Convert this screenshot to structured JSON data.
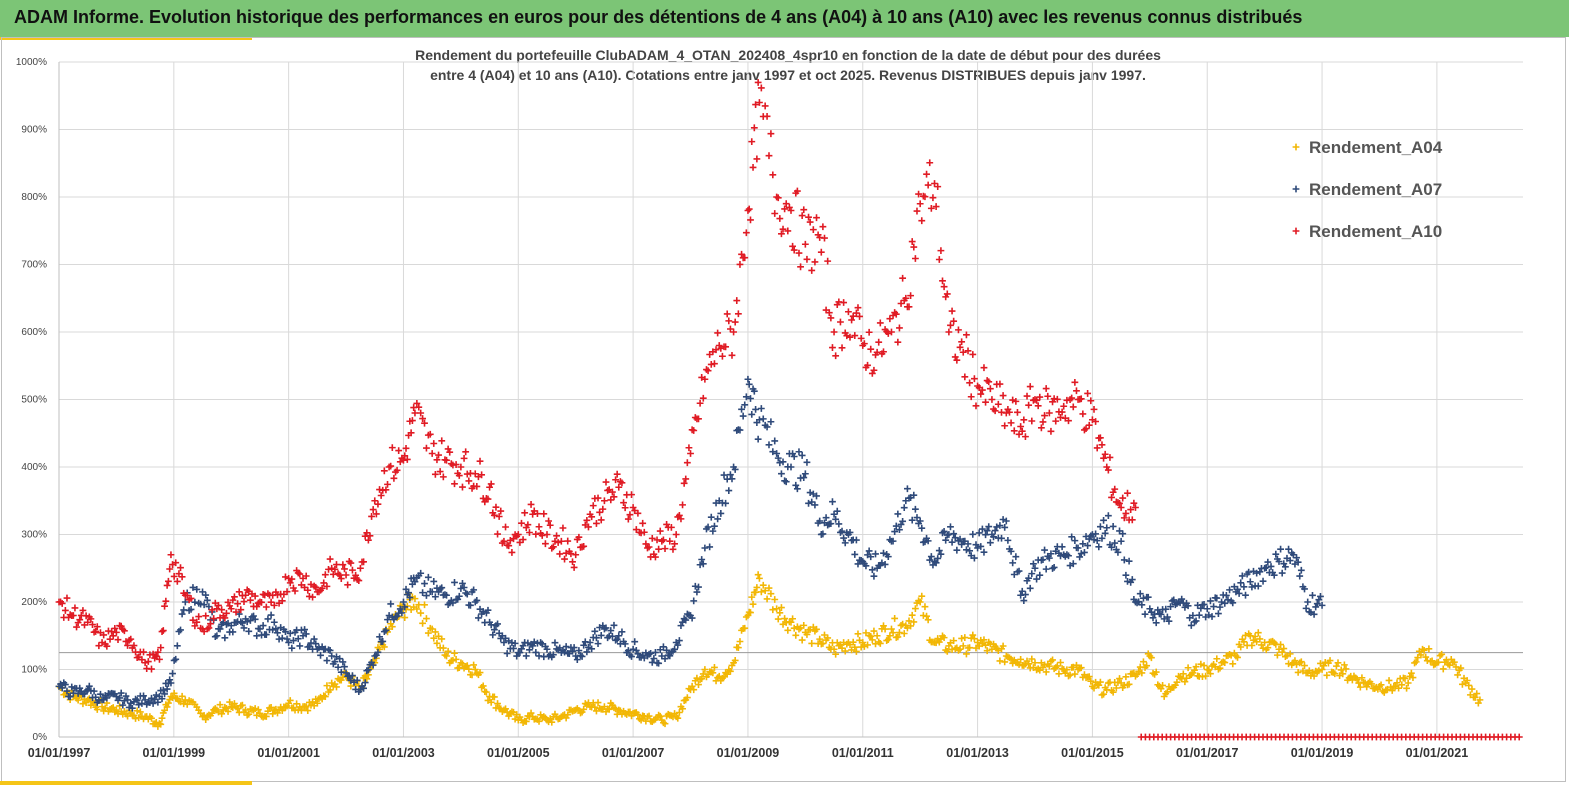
{
  "banner": {
    "title": "ADAM Informe. Evolution historique des performances en euros pour des détentions de 4 ans (A04) à 10 ans (A10) avec les revenus connus distribués"
  },
  "colors": {
    "banner": "#7cc576",
    "accent": "#f5c518",
    "a04": "#f2b705",
    "a07": "#2f4a7a",
    "a10": "#e01b24",
    "grid": "#d9d9d9",
    "refline": "#9a9a9a"
  },
  "chart_data": {
    "type": "scatter",
    "title_lines": [
      "Rendement du portefeuille ClubADAM_4_OTAN_202408_4spr10  en fonction de la date de début pour des durées",
      "entre 4 (A04) et 10 ans (A10). Cotations entre janv 1997 et oct 2025. Revenus DISTRIBUES depuis janv 1997."
    ],
    "xlabel": "",
    "ylabel": "",
    "xlim": [
      1997.0,
      2022.5
    ],
    "ylim": [
      0,
      1000
    ],
    "yticks": [
      0,
      100,
      200,
      300,
      400,
      500,
      600,
      700,
      800,
      900,
      1000
    ],
    "ytick_labels": [
      "0%",
      "100%",
      "200%",
      "300%",
      "400%",
      "500%",
      "600%",
      "700%",
      "800%",
      "900%",
      "1000%"
    ],
    "xticks": [
      1997,
      1999,
      2001,
      2003,
      2005,
      2007,
      2009,
      2011,
      2013,
      2015,
      2017,
      2019,
      2021
    ],
    "xtick_labels": [
      "01/01/1997",
      "01/01/1999",
      "01/01/2001",
      "01/01/2003",
      "01/01/2005",
      "01/01/2007",
      "01/01/2009",
      "01/01/2011",
      "01/01/2013",
      "01/01/2015",
      "01/01/2017",
      "01/01/2019",
      "01/01/2021"
    ],
    "reference_line": 125,
    "grid": true,
    "legend_position": "top-right",
    "marker": "+",
    "series": [
      {
        "name": "Rendement_A04",
        "color": "#f2b705",
        "x": [
          1997.0,
          1997.25,
          1997.5,
          1997.75,
          1998.0,
          1998.25,
          1998.5,
          1998.75,
          1998.95,
          1999.2,
          1999.5,
          1999.75,
          2000.0,
          2000.25,
          2000.5,
          2000.75,
          2001.0,
          2001.25,
          2001.5,
          2001.75,
          2002.0,
          2002.25,
          2002.5,
          2002.75,
          2003.0,
          2003.2,
          2003.5,
          2003.75,
          2004.0,
          2004.25,
          2004.5,
          2004.75,
          2005.0,
          2005.25,
          2005.5,
          2005.75,
          2006.0,
          2006.25,
          2006.5,
          2006.75,
          2007.0,
          2007.25,
          2007.5,
          2007.75,
          2008.0,
          2008.25,
          2008.5,
          2008.75,
          2009.0,
          2009.2,
          2009.5,
          2009.75,
          2010.0,
          2010.25,
          2010.5,
          2010.75,
          2011.0,
          2011.25,
          2011.5,
          2011.75,
          2012.0,
          2012.25,
          2012.5,
          2012.75,
          2013.0,
          2013.25,
          2013.5,
          2013.75,
          2014.0,
          2014.25,
          2014.5,
          2014.75,
          2015.0,
          2015.25,
          2015.5,
          2015.75,
          2016.0,
          2016.25,
          2016.5,
          2016.75,
          2017.0,
          2017.25,
          2017.5,
          2017.75,
          2018.0,
          2018.25,
          2018.5,
          2018.75,
          2019.0,
          2019.25,
          2019.5,
          2019.75,
          2020.0,
          2020.25,
          2020.5,
          2020.75,
          2021.0,
          2021.25,
          2021.5,
          2021.75
        ],
        "values": [
          75,
          60,
          55,
          45,
          40,
          35,
          30,
          20,
          60,
          55,
          30,
          40,
          45,
          40,
          35,
          40,
          50,
          45,
          50,
          80,
          90,
          70,
          110,
          160,
          190,
          205,
          160,
          120,
          110,
          100,
          60,
          40,
          25,
          30,
          25,
          30,
          40,
          45,
          45,
          40,
          35,
          30,
          25,
          30,
          70,
          100,
          90,
          110,
          180,
          235,
          190,
          170,
          155,
          145,
          130,
          140,
          140,
          150,
          160,
          165,
          200,
          140,
          135,
          135,
          140,
          130,
          120,
          115,
          110,
          105,
          100,
          100,
          75,
          70,
          80,
          90,
          120,
          60,
          90,
          95,
          100,
          110,
          120,
          150,
          140,
          130,
          110,
          95,
          100,
          105,
          90,
          80,
          75,
          75,
          80,
          130,
          110,
          115,
          80,
          55
        ]
      },
      {
        "name": "Rendement_A07",
        "color": "#2f4a7a",
        "x": [
          1997.0,
          1997.25,
          1997.5,
          1997.75,
          1998.0,
          1998.25,
          1998.5,
          1998.75,
          1998.95,
          1999.2,
          1999.5,
          1999.75,
          2000.0,
          2000.25,
          2000.5,
          2000.75,
          2001.0,
          2001.25,
          2001.5,
          2001.75,
          2002.0,
          2002.25,
          2002.5,
          2002.75,
          2003.0,
          2003.2,
          2003.5,
          2003.75,
          2004.0,
          2004.25,
          2004.5,
          2004.75,
          2005.0,
          2005.25,
          2005.5,
          2005.75,
          2006.0,
          2006.25,
          2006.5,
          2006.75,
          2007.0,
          2007.25,
          2007.5,
          2007.75,
          2008.0,
          2008.25,
          2008.5,
          2008.75,
          2009.0,
          2009.2,
          2009.5,
          2009.75,
          2010.0,
          2010.25,
          2010.5,
          2010.75,
          2011.0,
          2011.25,
          2011.5,
          2011.75,
          2012.0,
          2012.25,
          2012.5,
          2012.75,
          2013.0,
          2013.25,
          2013.5,
          2013.75,
          2014.0,
          2014.25,
          2014.5,
          2014.75,
          2015.0,
          2015.25,
          2015.5,
          2015.75,
          2016.0,
          2016.25,
          2016.5,
          2016.75,
          2017.0,
          2017.25,
          2017.5,
          2017.75,
          2018.0,
          2018.25,
          2018.5,
          2018.75,
          2019.0
        ],
        "values": [
          75,
          65,
          70,
          55,
          60,
          50,
          55,
          60,
          80,
          200,
          215,
          150,
          165,
          175,
          160,
          170,
          140,
          150,
          130,
          120,
          95,
          70,
          120,
          180,
          200,
          230,
          215,
          210,
          220,
          200,
          170,
          140,
          125,
          135,
          130,
          125,
          120,
          140,
          160,
          150,
          130,
          120,
          120,
          140,
          180,
          280,
          350,
          400,
          530,
          470,
          420,
          400,
          390,
          320,
          330,
          300,
          260,
          250,
          290,
          350,
          320,
          260,
          300,
          290,
          280,
          300,
          320,
          210,
          250,
          265,
          270,
          280,
          300,
          310,
          290,
          200,
          190,
          175,
          200,
          180,
          190,
          200,
          215,
          230,
          250,
          260,
          270,
          200,
          195
        ]
      },
      {
        "name": "Rendement_A10",
        "color": "#e01b24",
        "x": [
          1997.0,
          1997.25,
          1997.5,
          1997.75,
          1998.0,
          1998.25,
          1998.5,
          1998.75,
          1998.95,
          1999.2,
          1999.5,
          1999.75,
          2000.0,
          2000.25,
          2000.5,
          2000.75,
          2001.0,
          2001.25,
          2001.5,
          2001.75,
          2002.0,
          2002.25,
          2002.5,
          2002.75,
          2003.0,
          2003.2,
          2003.5,
          2003.75,
          2004.0,
          2004.25,
          2004.5,
          2004.75,
          2005.0,
          2005.25,
          2005.5,
          2005.75,
          2006.0,
          2006.25,
          2006.5,
          2006.75,
          2007.0,
          2007.25,
          2007.5,
          2007.75,
          2008.0,
          2008.25,
          2008.5,
          2008.75,
          2009.0,
          2009.2,
          2009.5,
          2009.75,
          2010.0,
          2010.25,
          2010.5,
          2010.75,
          2011.0,
          2011.25,
          2011.5,
          2011.75,
          2012.0,
          2012.25,
          2012.5,
          2012.75,
          2013.0,
          2013.25,
          2013.5,
          2013.75,
          2014.0,
          2014.25,
          2014.5,
          2014.75,
          2015.0,
          2015.25,
          2015.5,
          2015.75
        ],
        "values": [
          200,
          180,
          170,
          140,
          155,
          145,
          110,
          115,
          270,
          210,
          160,
          190,
          190,
          210,
          200,
          195,
          235,
          235,
          215,
          250,
          240,
          250,
          350,
          400,
          410,
          480,
          420,
          410,
          400,
          390,
          370,
          290,
          300,
          330,
          300,
          290,
          270,
          330,
          350,
          370,
          340,
          280,
          290,
          300,
          420,
          530,
          580,
          600,
          780,
          940,
          800,
          780,
          730,
          740,
          600,
          630,
          580,
          570,
          600,
          650,
          790,
          820,
          600,
          570,
          520,
          500,
          480,
          460,
          500,
          480,
          490,
          500,
          470,
          400,
          340,
          340
        ]
      }
    ],
    "baseline_marker_range": [
      2015.85,
      2022.5
    ]
  }
}
